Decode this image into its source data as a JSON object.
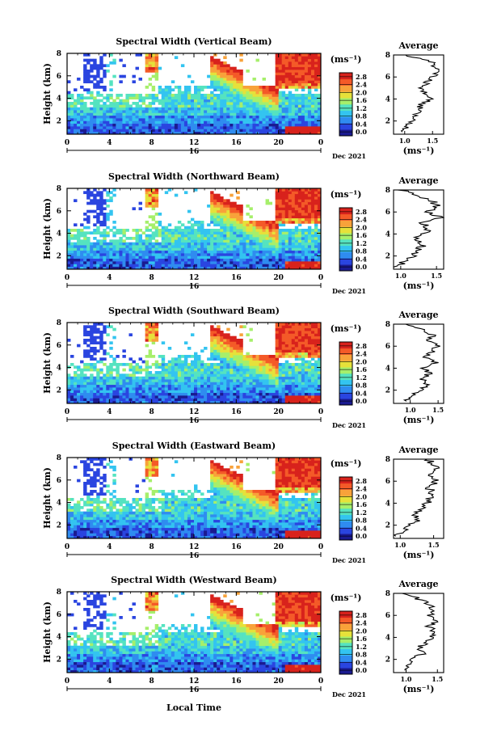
{
  "chart_data": {
    "type": "heatmap",
    "figure": {
      "date_label": "Dec 2021",
      "day_label": "16",
      "xlabel": "Local Time",
      "ylabel": "Height (km)",
      "x_ticks": [
        "0",
        "4",
        "8",
        "12",
        "16",
        "20",
        "0"
      ],
      "y_ticks": [
        "2",
        "4",
        "6",
        "8"
      ],
      "colorbar_unit": "(ms⁻¹)",
      "colorbar_ticks": [
        "0.0",
        "0.4",
        "0.8",
        "1.2",
        "1.6",
        "2.0",
        "2.4",
        "2.8"
      ],
      "colormap": [
        "#1a1a90",
        "#2a45e0",
        "#2f8cf0",
        "#33c4f0",
        "#55e3c0",
        "#a6ef6b",
        "#e6e13a",
        "#f8a23a",
        "#f45a28",
        "#d8221c"
      ]
    },
    "panels": [
      {
        "title": "Spectral Width (Vertical Beam)",
        "avg_title": "Average",
        "avg_xticks": [
          "1.0",
          "1.5"
        ],
        "avg_xunit": "(ms⁻¹)",
        "avg_xlim": [
          0.8,
          1.7
        ],
        "height_km": [
          1.0,
          1.5,
          2.0,
          2.5,
          3.0,
          3.5,
          4.0,
          4.5,
          5.0,
          5.5,
          6.0,
          6.5,
          7.0,
          7.5,
          8.0
        ],
        "avg_width": [
          0.9,
          1.05,
          1.1,
          1.2,
          1.25,
          1.3,
          1.5,
          1.35,
          1.3,
          1.4,
          1.5,
          1.6,
          1.55,
          1.45,
          1.0
        ]
      },
      {
        "title": "Spectral Width (Northward Beam)",
        "avg_title": "Average",
        "avg_xticks": [
          "1.0",
          "1.5"
        ],
        "avg_xunit": "(ms⁻¹)",
        "avg_xlim": [
          0.9,
          1.6
        ],
        "height_km": [
          1.0,
          1.5,
          2.0,
          2.5,
          3.0,
          3.5,
          4.0,
          4.5,
          5.0,
          5.5,
          6.0,
          6.5,
          7.0,
          7.5,
          8.0
        ],
        "avg_width": [
          0.95,
          1.05,
          1.15,
          1.25,
          1.3,
          1.2,
          1.35,
          1.4,
          1.3,
          1.55,
          1.4,
          1.5,
          1.45,
          1.25,
          1.0
        ]
      },
      {
        "title": "Spectral Width (Southward Beam)",
        "avg_title": "Average",
        "avg_xticks": [
          "1.0",
          "1.5"
        ],
        "avg_xunit": "(ms⁻¹)",
        "avg_xlim": [
          0.7,
          1.6
        ],
        "height_km": [
          1.0,
          1.5,
          2.0,
          2.5,
          3.0,
          3.5,
          4.0,
          4.5,
          5.0,
          5.5,
          6.0,
          6.5,
          7.0,
          7.5,
          8.0
        ],
        "avg_width": [
          0.9,
          1.05,
          1.15,
          1.3,
          1.2,
          1.35,
          1.25,
          1.45,
          1.3,
          1.4,
          1.5,
          1.35,
          1.4,
          1.25,
          0.95
        ]
      },
      {
        "title": "Spectral Width (Eastward Beam)",
        "avg_title": "Average",
        "avg_xticks": [
          "1.0",
          "1.5"
        ],
        "avg_xunit": "(ms⁻¹)",
        "avg_xlim": [
          0.9,
          1.65
        ],
        "height_km": [
          1.0,
          1.5,
          2.0,
          2.5,
          3.0,
          3.5,
          4.0,
          4.5,
          5.0,
          5.5,
          6.0,
          6.5,
          7.0,
          7.5,
          8.0
        ],
        "avg_width": [
          0.95,
          1.05,
          1.15,
          1.25,
          1.2,
          1.35,
          1.4,
          1.45,
          1.5,
          1.4,
          1.55,
          1.45,
          1.55,
          1.5,
          1.4
        ]
      },
      {
        "title": "Spectral Width (Westward Beam)",
        "avg_title": "Average",
        "avg_xticks": [
          "1.0",
          "1.5"
        ],
        "avg_xunit": "(ms⁻¹)",
        "avg_xlim": [
          0.8,
          1.6
        ],
        "height_km": [
          1.0,
          1.5,
          2.0,
          2.5,
          3.0,
          3.5,
          4.0,
          4.5,
          5.0,
          5.5,
          6.0,
          6.5,
          7.0,
          7.5,
          8.0
        ],
        "avg_width": [
          0.95,
          1.05,
          1.1,
          1.25,
          1.2,
          1.3,
          1.4,
          1.45,
          1.35,
          1.5,
          1.4,
          1.45,
          1.35,
          1.2,
          1.0
        ]
      }
    ]
  }
}
